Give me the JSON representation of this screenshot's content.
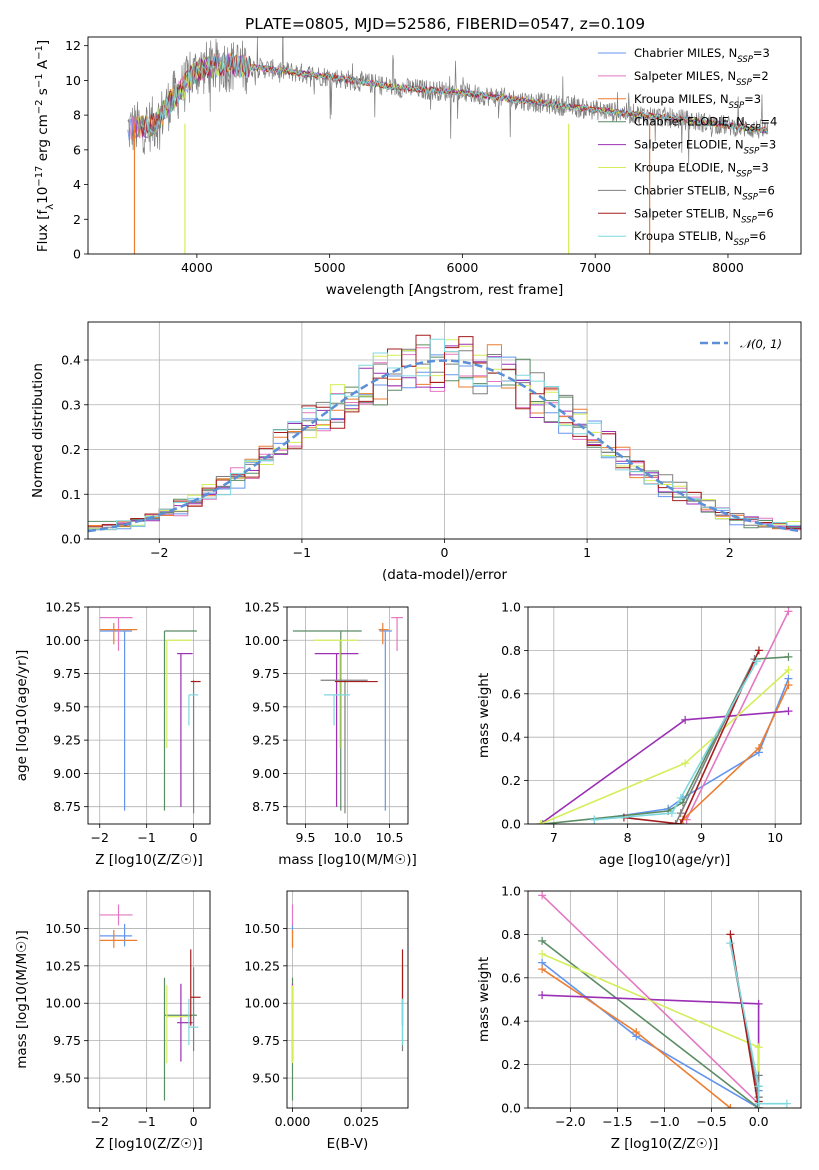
{
  "title": "PLATE=0805, MJD=52586, FIBERID=0547, z=0.109",
  "series": [
    {
      "name": "Chabrier MILES, N_SSP=3",
      "color": "#6495ed",
      "age": 10.07,
      "age_lo": 8.72,
      "age_hi": 10.07,
      "Z": -1.47,
      "Z_lo": -2.0,
      "Z_hi": -1.31,
      "mass": 10.45,
      "mass_lo": 10.38,
      "mass_hi": 10.53,
      "ebv": 0.0,
      "w_age": [
        [
          7.55,
          0.02
        ],
        [
          8.55,
          0.07
        ],
        [
          8.75,
          0.12
        ],
        [
          9.78,
          0.33
        ],
        [
          10.18,
          0.67
        ]
      ],
      "w_Z": [
        [
          -2.3,
          0.67
        ],
        [
          -1.3,
          0.33
        ],
        [
          0.0,
          0.0
        ],
        [
          0.0,
          0.02
        ],
        [
          0.0,
          0.08
        ]
      ]
    },
    {
      "name": "Salpeter MILES, N_SSP=2",
      "color": "#e377c2",
      "age": 10.17,
      "age_lo": 9.92,
      "age_hi": 10.17,
      "Z": -1.6,
      "Z_lo": -2.0,
      "Z_hi": -1.3,
      "mass": 10.59,
      "mass_lo": 10.52,
      "mass_hi": 10.66,
      "ebv": 0.0,
      "w_age": [
        [
          8.8,
          0.02
        ],
        [
          10.18,
          0.98
        ]
      ],
      "w_Z": [
        [
          -2.3,
          0.98
        ],
        [
          0.0,
          0.02
        ]
      ]
    },
    {
      "name": "Kroupa MILES, N_SSP=3",
      "color": "#ed7d31",
      "age": 10.08,
      "age_lo": 9.97,
      "age_hi": 10.13,
      "Z": -1.7,
      "Z_lo": -2.0,
      "Z_hi": -1.2,
      "mass": 10.42,
      "mass_lo": 10.37,
      "mass_hi": 10.49,
      "ebv": 0.0,
      "w_age": [
        [
          8.75,
          0.02
        ],
        [
          9.78,
          0.35
        ],
        [
          10.18,
          0.64
        ]
      ],
      "w_Z": [
        [
          -2.3,
          0.64
        ],
        [
          -1.3,
          0.35
        ],
        [
          -0.3,
          0.0
        ]
      ]
    },
    {
      "name": "Chabrier ELODIE, N_SSP=4",
      "color": "#5b8c64",
      "age": 10.07,
      "age_lo": 8.72,
      "age_hi": 10.07,
      "Z": -0.62,
      "Z_lo": -0.62,
      "Z_hi": 0.07,
      "mass": 9.92,
      "mass_lo": 9.35,
      "mass_hi": 10.17,
      "ebv": 0.0,
      "w_age": [
        [
          6.85,
          0.0
        ],
        [
          8.55,
          0.06
        ],
        [
          8.75,
          0.1
        ],
        [
          9.72,
          0.76
        ],
        [
          10.18,
          0.77
        ]
      ],
      "w_Z": [
        [
          -2.3,
          0.77
        ],
        [
          0.0,
          0.0
        ],
        [
          0.0,
          0.05
        ],
        [
          0.0,
          0.1
        ],
        [
          0.0,
          0.15
        ]
      ]
    },
    {
      "name": "Salpeter ELODIE, N_SSP=3",
      "color": "#9b30b4",
      "age": 9.9,
      "age_lo": 8.75,
      "age_hi": 9.9,
      "Z": -0.27,
      "Z_lo": -0.35,
      "Z_hi": -0.02,
      "mass": 9.87,
      "mass_lo": 9.61,
      "mass_hi": 10.13,
      "ebv": 0.0,
      "w_age": [
        [
          6.82,
          0.0
        ],
        [
          8.78,
          0.48
        ],
        [
          10.18,
          0.52
        ]
      ],
      "w_Z": [
        [
          -2.3,
          0.52
        ],
        [
          0.0,
          0.48
        ],
        [
          0.0,
          0.0
        ]
      ]
    },
    {
      "name": "Kroupa ELODIE, N_SSP=3",
      "color": "#d4ee5a",
      "age": 10.0,
      "age_lo": 9.19,
      "age_hi": 10.0,
      "Z": -0.57,
      "Z_lo": -0.57,
      "Z_hi": -0.05,
      "mass": 9.91,
      "mass_lo": 9.6,
      "mass_hi": 10.12,
      "ebv": 0.0,
      "w_age": [
        [
          6.82,
          0.0
        ],
        [
          8.78,
          0.28
        ],
        [
          10.18,
          0.71
        ]
      ],
      "w_Z": [
        [
          -2.3,
          0.71
        ],
        [
          0.0,
          0.28
        ],
        [
          0.0,
          0.0
        ]
      ]
    },
    {
      "name": "Chabrier STELIB, N_SSP=6",
      "color": "#7f7f7f",
      "age": 9.7,
      "age_lo": 8.7,
      "age_hi": 9.7,
      "Z": 0.0,
      "Z_lo": 0.0,
      "Z_hi": 0.0,
      "mass": 9.97,
      "mass_lo": 9.68,
      "mass_hi": 10.24,
      "ebv": 0.04,
      "w_age": [
        [
          8.65,
          0.0
        ],
        [
          8.72,
          0.05
        ],
        [
          9.72,
          0.76
        ]
      ],
      "w_Z": [
        [
          -0.3,
          0.76
        ],
        [
          0.0,
          0.05
        ],
        [
          0.0,
          0.15
        ]
      ]
    },
    {
      "name": "Salpeter STELIB, N_SSP=6",
      "color": "#a51d1d",
      "age": 9.69,
      "age_lo": 9.69,
      "age_hi": 9.69,
      "Z": -0.06,
      "Z_lo": -0.06,
      "Z_hi": 0.15,
      "mass": 10.04,
      "mass_lo": 9.85,
      "mass_hi": 10.36,
      "ebv": 0.04,
      "w_age": [
        [
          7.95,
          0.03
        ],
        [
          8.72,
          0.0
        ],
        [
          9.78,
          0.8
        ]
      ],
      "w_Z": [
        [
          -0.3,
          0.8
        ],
        [
          0.0,
          0.0
        ],
        [
          0.0,
          0.03
        ]
      ]
    },
    {
      "name": "Kroupa STELIB, N_SSP=6",
      "color": "#7fd8e0",
      "age": 9.59,
      "age_lo": 9.36,
      "age_hi": 9.59,
      "Z": -0.1,
      "Z_lo": -0.1,
      "Z_hi": 0.1,
      "mass": 9.84,
      "mass_lo": 9.72,
      "mass_hi": 10.03,
      "ebv": 0.04,
      "w_age": [
        [
          7.55,
          0.02
        ],
        [
          8.6,
          0.05
        ],
        [
          8.72,
          0.12
        ],
        [
          9.75,
          0.75
        ]
      ],
      "w_Z": [
        [
          -0.3,
          0.76
        ],
        [
          0.0,
          0.1
        ],
        [
          0.0,
          0.02
        ],
        [
          0.3,
          0.02
        ]
      ]
    }
  ],
  "chart_data": [
    {
      "type": "line",
      "panel": "spectrum",
      "title": "PLATE=0805, MJD=52586, FIBERID=0547, z=0.109",
      "xlabel": "wavelength [Angstrom, rest frame]",
      "ylabel": "Flux [f_λ 10^-17 erg cm^-2 s^-1 A^-1]",
      "xlim": [
        3180,
        8550
      ],
      "ylim": [
        0,
        12.5
      ],
      "xticks": [
        4000,
        5000,
        6000,
        7000,
        8000
      ],
      "yticks": [
        0,
        2,
        4,
        6,
        8,
        10,
        12
      ],
      "legend_position": "right",
      "spectrum_shape": {
        "x": [
          3480,
          3600,
          3700,
          3800,
          3900,
          4000,
          4200,
          4500,
          5000,
          5500,
          6000,
          6500,
          7000,
          7500,
          8000,
          8300
        ],
        "y": [
          7.2,
          7.3,
          7.6,
          8.8,
          9.6,
          10.6,
          10.9,
          10.7,
          10.2,
          9.6,
          9.3,
          8.8,
          8.3,
          7.9,
          7.4,
          7.1
        ]
      }
    },
    {
      "type": "bar",
      "panel": "residual-histogram",
      "xlabel": "(data-model)/error",
      "ylabel": "Normed distribution",
      "xlim": [
        -2.5,
        2.5
      ],
      "ylim": [
        0,
        0.485
      ],
      "xticks": [
        -2,
        -1,
        0,
        1,
        2
      ],
      "yticks": [
        0.0,
        0.1,
        0.2,
        0.3,
        0.4
      ],
      "legend": "N(0,1)",
      "legend_position": "top-right",
      "grid": true,
      "reference_curve": "standard normal pdf"
    },
    {
      "type": "scatter",
      "panel": "age-vs-Z",
      "xlabel": "Z [log10(Z/Z☉)]",
      "ylabel": "age [log10(age/yr)]",
      "xlim": [
        -2.25,
        0.35
      ],
      "ylim": [
        8.62,
        10.25
      ],
      "xticks": [
        -2,
        -1,
        0
      ],
      "yticks": [
        8.75,
        9.0,
        9.25,
        9.5,
        9.75,
        10.0,
        10.25
      ],
      "grid": true
    },
    {
      "type": "scatter",
      "panel": "age-vs-mass",
      "xlabel": "mass [log10(M/M☉)]",
      "ylabel": "",
      "xlim": [
        9.28,
        10.72
      ],
      "ylim": [
        8.62,
        10.25
      ],
      "xticks": [
        9.5,
        10.0,
        10.5
      ],
      "yticks": [
        8.75,
        9.0,
        9.25,
        9.5,
        9.75,
        10.0,
        10.25
      ],
      "grid": true
    },
    {
      "type": "line",
      "panel": "weight-vs-age",
      "xlabel": "age [log10(age/yr)]",
      "ylabel": "mass weight",
      "xlim": [
        6.65,
        10.35
      ],
      "ylim": [
        0,
        1.0
      ],
      "xticks": [
        7,
        8,
        9,
        10
      ],
      "yticks": [
        0.0,
        0.2,
        0.4,
        0.6,
        0.8,
        1.0
      ],
      "grid": true
    },
    {
      "type": "scatter",
      "panel": "mass-vs-Z",
      "xlabel": "Z [log10(Z/Z☉)]",
      "ylabel": "mass [log10(M/M☉)]",
      "xlim": [
        -2.25,
        0.35
      ],
      "ylim": [
        9.3,
        10.75
      ],
      "xticks": [
        -2,
        -1,
        0
      ],
      "yticks": [
        9.5,
        9.75,
        10.0,
        10.25,
        10.5
      ],
      "grid": true
    },
    {
      "type": "scatter",
      "panel": "mass-vs-ebv",
      "xlabel": "E(B-V)",
      "ylabel": "",
      "xlim": [
        -0.002,
        0.042
      ],
      "ylim": [
        9.3,
        10.75
      ],
      "xticks": [
        0.0,
        0.025
      ],
      "xtick_labels": [
        "0.000",
        "0.025"
      ],
      "yticks": [
        9.5,
        9.75,
        10.0,
        10.25,
        10.5
      ],
      "grid": true
    },
    {
      "type": "line",
      "panel": "weight-vs-Z",
      "xlabel": "Z [log10(Z/Z☉)]",
      "ylabel": "mass weight",
      "xlim": [
        -2.45,
        0.45
      ],
      "ylim": [
        0,
        1.0
      ],
      "xticks": [
        -2.0,
        -1.5,
        -1.0,
        -0.5,
        0.0
      ],
      "yticks": [
        0.0,
        0.2,
        0.4,
        0.6,
        0.8,
        1.0
      ],
      "grid": true
    }
  ]
}
